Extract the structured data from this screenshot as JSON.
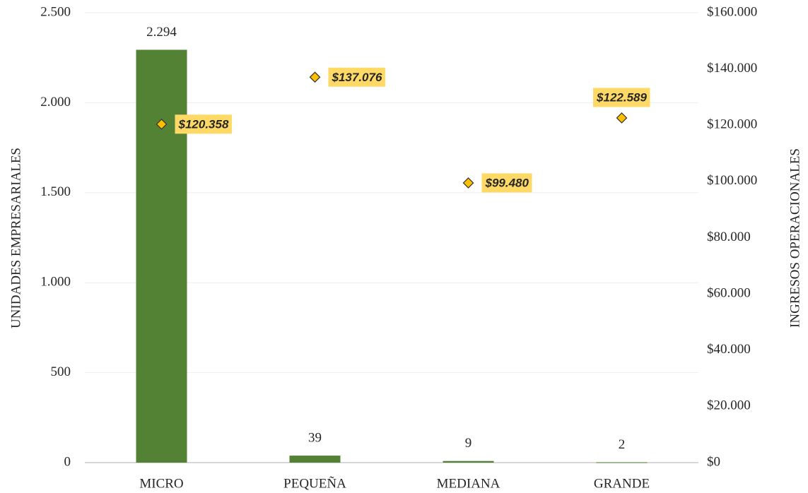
{
  "chart_data": {
    "type": "bar",
    "categories": [
      "MICRO",
      "PEQUEÑA",
      "MEDIANA",
      "GRANDE"
    ],
    "y_label": "UNIDADES EMPRESARIALES",
    "y2_label": "INGRESOS OPERACIONALES",
    "series": [
      {
        "type": "bar",
        "color": "#548235",
        "values": [
          2294,
          39,
          9,
          2
        ],
        "value_labels": [
          "2.294",
          "39",
          "9",
          "2"
        ]
      },
      {
        "type": "scatter",
        "axis": "y2",
        "color": "#ffc000",
        "values": [
          120358,
          137076,
          99480,
          122589
        ],
        "value_labels": [
          "$120.358",
          "$137.076",
          "$99.480",
          "$122.589"
        ],
        "label_color": "#ffd966"
      }
    ],
    "ylim": [
      0,
      2500
    ],
    "yticks": [
      0,
      500,
      {
        "value": 1000,
        "label": "1.000"
      },
      {
        "value": 1500,
        "label": "1.500"
      },
      {
        "value": 2000,
        "label": "2.000"
      },
      {
        "value": 2500,
        "label": "2.500"
      }
    ],
    "y2lim": [
      0,
      160000
    ],
    "y2ticks": [
      {
        "value": 0,
        "label": "$0"
      },
      {
        "value": 20000,
        "label": "$20.000"
      },
      {
        "value": 40000,
        "label": "$40.000"
      },
      {
        "value": 60000,
        "label": "$60.000"
      },
      {
        "value": 80000,
        "label": "$80.000"
      },
      {
        "value": 100000,
        "label": "$100.000"
      },
      {
        "value": 120000,
        "label": "$120.000"
      },
      {
        "value": 140000,
        "label": "$140.000"
      },
      {
        "value": 160000,
        "label": "$160.000"
      }
    ],
    "grid": true
  }
}
